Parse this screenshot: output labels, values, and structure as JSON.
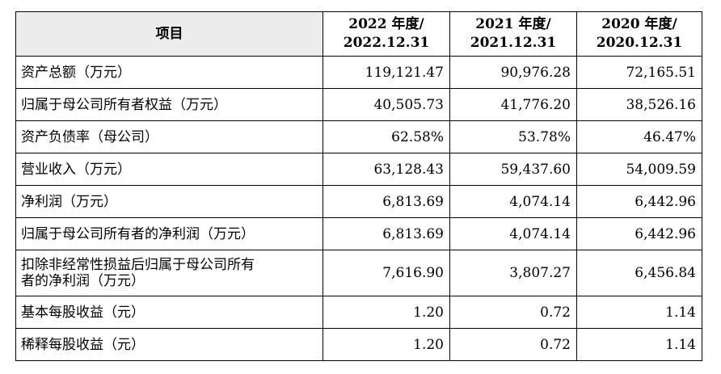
{
  "table": {
    "headers": [
      {
        "lines": [
          "项目"
        ]
      },
      {
        "lines": [
          "2022 年度/",
          "2022.12.31"
        ]
      },
      {
        "lines": [
          "2021 年度/",
          "2021.12.31"
        ]
      },
      {
        "lines": [
          "2020 年度/",
          "2020.12.31"
        ]
      }
    ],
    "rows": [
      {
        "label": [
          "资产总额（万元）"
        ],
        "values": [
          "119,121.47",
          "90,976.28",
          "72,165.51"
        ]
      },
      {
        "label": [
          "归属于母公司所有者权益（万元）"
        ],
        "values": [
          "40,505.73",
          "41,776.20",
          "38,526.16"
        ]
      },
      {
        "label": [
          "资产负债率（母公司）"
        ],
        "values": [
          "62.58%",
          "53.78%",
          "46.47%"
        ]
      },
      {
        "label": [
          "营业收入（万元）"
        ],
        "values": [
          "63,128.43",
          "59,437.60",
          "54,009.59"
        ]
      },
      {
        "label": [
          "净利润（万元）"
        ],
        "values": [
          "6,813.69",
          "4,074.14",
          "6,442.96"
        ]
      },
      {
        "label": [
          "归属于母公司所有者的净利润（万元）"
        ],
        "values": [
          "6,813.69",
          "4,074.14",
          "6,442.96"
        ]
      },
      {
        "label": [
          "扣除非经常性损益后归属于母公司所有",
          "者的净利润（万元）"
        ],
        "values": [
          "7,616.90",
          "3,807.27",
          "6,456.84"
        ]
      },
      {
        "label": [
          "基本每股收益（元）"
        ],
        "values": [
          "1.20",
          "0.72",
          "1.14"
        ]
      },
      {
        "label": [
          "稀释每股收益（元）"
        ],
        "values": [
          "1.20",
          "0.72",
          "1.14"
        ]
      }
    ]
  }
}
